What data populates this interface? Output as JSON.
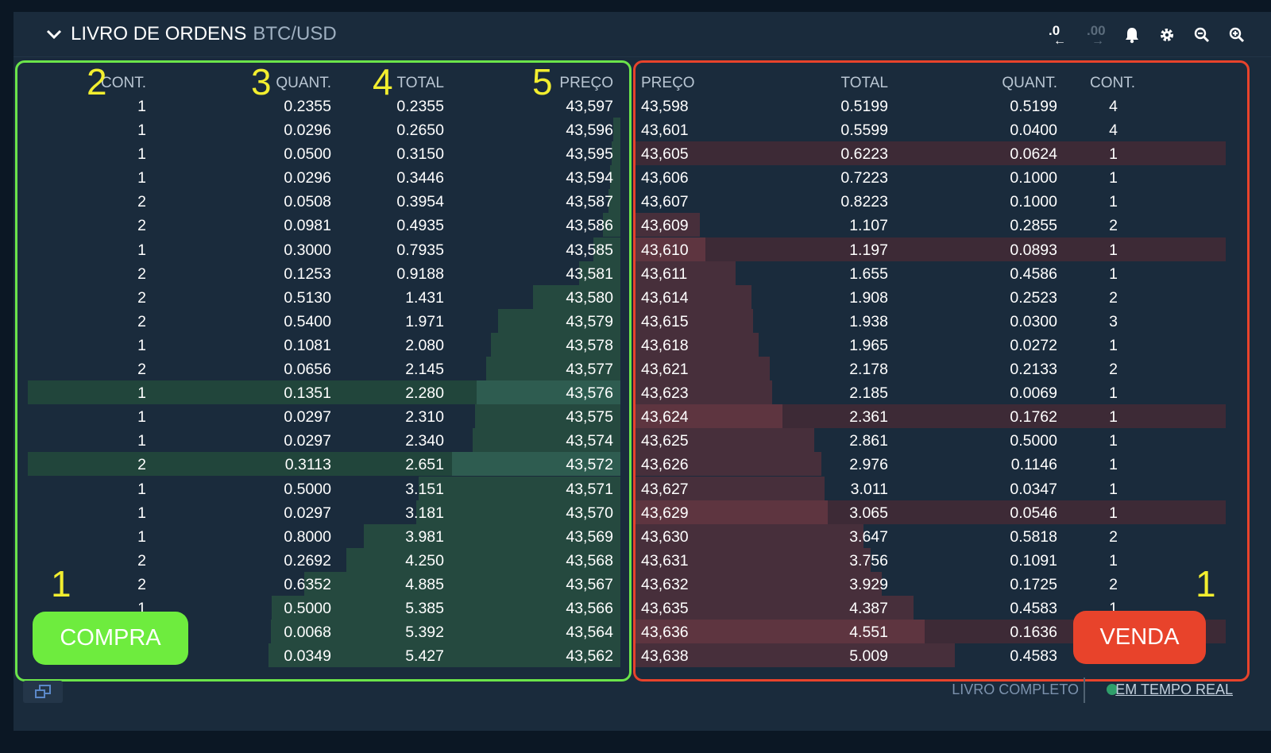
{
  "header": {
    "title": "LIVRO DE ORDENS",
    "pair": "BTC/USD",
    "tools": [
      {
        "icon": "decrease-precision-icon",
        "label": ".0"
      },
      {
        "icon": "increase-precision-icon",
        "label": ".00"
      },
      {
        "icon": "bell-icon"
      },
      {
        "icon": "gear-icon"
      },
      {
        "icon": "zoom-out-icon"
      },
      {
        "icon": "zoom-in-icon"
      }
    ]
  },
  "bids": {
    "headers": {
      "count": "CONT.",
      "amount": "QUANT.",
      "total": "TOTAL",
      "price": "PREÇO"
    },
    "rows": [
      {
        "count": "1",
        "amount": "0.2355",
        "total": "0.2355",
        "price": "43,597",
        "depth": 0.0,
        "highlight": false
      },
      {
        "count": "1",
        "amount": "0.0296",
        "total": "0.2650",
        "price": "43,596",
        "depth": 0.012,
        "highlight": false
      },
      {
        "count": "1",
        "amount": "0.0500",
        "total": "0.3150",
        "price": "43,595",
        "depth": 0.015,
        "highlight": false
      },
      {
        "count": "1",
        "amount": "0.0296",
        "total": "0.3446",
        "price": "43,594",
        "depth": 0.018,
        "highlight": false
      },
      {
        "count": "2",
        "amount": "0.0508",
        "total": "0.3954",
        "price": "43,587",
        "depth": 0.02,
        "highlight": false
      },
      {
        "count": "2",
        "amount": "0.0981",
        "total": "0.4935",
        "price": "43,586",
        "depth": 0.03,
        "highlight": false
      },
      {
        "count": "1",
        "amount": "0.3000",
        "total": "0.7935",
        "price": "43,585",
        "depth": 0.045,
        "highlight": false
      },
      {
        "count": "2",
        "amount": "0.1253",
        "total": "0.9188",
        "price": "43,581",
        "depth": 0.07,
        "highlight": false
      },
      {
        "count": "2",
        "amount": "0.5130",
        "total": "1.431",
        "price": "43,580",
        "depth": 0.147,
        "highlight": false
      },
      {
        "count": "2",
        "amount": "0.5400",
        "total": "1.971",
        "price": "43,579",
        "depth": 0.207,
        "highlight": false
      },
      {
        "count": "1",
        "amount": "0.1081",
        "total": "2.080",
        "price": "43,578",
        "depth": 0.219,
        "highlight": false
      },
      {
        "count": "2",
        "amount": "0.0656",
        "total": "2.145",
        "price": "43,577",
        "depth": 0.227,
        "highlight": false
      },
      {
        "count": "1",
        "amount": "0.1351",
        "total": "2.280",
        "price": "43,576",
        "depth": 0.242,
        "highlight": true
      },
      {
        "count": "1",
        "amount": "0.0297",
        "total": "2.310",
        "price": "43,575",
        "depth": 0.245,
        "highlight": false
      },
      {
        "count": "1",
        "amount": "0.0297",
        "total": "2.340",
        "price": "43,574",
        "depth": 0.249,
        "highlight": false
      },
      {
        "count": "2",
        "amount": "0.3113",
        "total": "2.651",
        "price": "43,572",
        "depth": 0.284,
        "highlight": true
      },
      {
        "count": "1",
        "amount": "0.5000",
        "total": "3.151",
        "price": "43,571",
        "depth": 0.34,
        "highlight": false
      },
      {
        "count": "1",
        "amount": "0.0297",
        "total": "3.181",
        "price": "43,570",
        "depth": 0.344,
        "highlight": false
      },
      {
        "count": "1",
        "amount": "0.8000",
        "total": "3.981",
        "price": "43,569",
        "depth": 0.433,
        "highlight": false
      },
      {
        "count": "2",
        "amount": "0.2692",
        "total": "4.250",
        "price": "43,568",
        "depth": 0.463,
        "highlight": false
      },
      {
        "count": "2",
        "amount": "0.6352",
        "total": "4.885",
        "price": "43,567",
        "depth": 0.534,
        "highlight": false
      },
      {
        "count": "1",
        "amount": "0.5000",
        "total": "5.385",
        "price": "43,566",
        "depth": 0.589,
        "highlight": false
      },
      {
        "count": "",
        "amount": "0.0068",
        "total": "5.392",
        "price": "43,564",
        "depth": 0.59,
        "highlight": false
      },
      {
        "count": "",
        "amount": "0.0349",
        "total": "5.427",
        "price": "43,562",
        "depth": 0.594,
        "highlight": false
      }
    ]
  },
  "asks": {
    "headers": {
      "price": "PREÇO",
      "total": "TOTAL",
      "amount": "QUANT.",
      "count": "CONT."
    },
    "rows": [
      {
        "price": "43,598",
        "total": "0.5199",
        "amount": "0.5199",
        "count": "4",
        "depth": 0.0,
        "highlight": false
      },
      {
        "price": "43,601",
        "total": "0.5599",
        "amount": "0.0400",
        "count": "4",
        "depth": 0.0,
        "highlight": false
      },
      {
        "price": "43,605",
        "total": "0.6223",
        "amount": "0.0624",
        "count": "1",
        "depth": 0.0,
        "highlight": true
      },
      {
        "price": "43,606",
        "total": "0.7223",
        "amount": "0.1000",
        "count": "1",
        "depth": 0.0,
        "highlight": false
      },
      {
        "price": "43,607",
        "total": "0.8223",
        "amount": "0.1000",
        "count": "1",
        "depth": 0.0,
        "highlight": false
      },
      {
        "price": "43,609",
        "total": "1.107",
        "amount": "0.2855",
        "count": "2",
        "depth": 0.11,
        "highlight": false
      },
      {
        "price": "43,610",
        "total": "1.197",
        "amount": "0.0893",
        "count": "1",
        "depth": 0.119,
        "highlight": true
      },
      {
        "price": "43,611",
        "total": "1.655",
        "amount": "0.4586",
        "count": "1",
        "depth": 0.171,
        "highlight": false
      },
      {
        "price": "43,614",
        "total": "1.908",
        "amount": "0.2523",
        "count": "2",
        "depth": 0.198,
        "highlight": false
      },
      {
        "price": "43,615",
        "total": "1.938",
        "amount": "0.0300",
        "count": "3",
        "depth": 0.2,
        "highlight": false
      },
      {
        "price": "43,618",
        "total": "1.965",
        "amount": "0.0272",
        "count": "1",
        "depth": 0.21,
        "highlight": false
      },
      {
        "price": "43,621",
        "total": "2.178",
        "amount": "0.2133",
        "count": "2",
        "depth": 0.229,
        "highlight": false
      },
      {
        "price": "43,623",
        "total": "2.185",
        "amount": "0.0069",
        "count": "1",
        "depth": 0.232,
        "highlight": false
      },
      {
        "price": "43,624",
        "total": "2.361",
        "amount": "0.1762",
        "count": "1",
        "depth": 0.25,
        "highlight": true
      },
      {
        "price": "43,625",
        "total": "2.861",
        "amount": "0.5000",
        "count": "1",
        "depth": 0.304,
        "highlight": false
      },
      {
        "price": "43,626",
        "total": "2.976",
        "amount": "0.1146",
        "count": "1",
        "depth": 0.316,
        "highlight": false
      },
      {
        "price": "43,627",
        "total": "3.011",
        "amount": "0.0347",
        "count": "1",
        "depth": 0.321,
        "highlight": false
      },
      {
        "price": "43,629",
        "total": "3.065",
        "amount": "0.0546",
        "count": "1",
        "depth": 0.327,
        "highlight": true
      },
      {
        "price": "43,630",
        "total": "3.647",
        "amount": "0.5818",
        "count": "2",
        "depth": 0.387,
        "highlight": false
      },
      {
        "price": "43,631",
        "total": "3.756",
        "amount": "0.1091",
        "count": "1",
        "depth": 0.399,
        "highlight": false
      },
      {
        "price": "43,632",
        "total": "3.929",
        "amount": "0.1725",
        "count": "2",
        "depth": 0.418,
        "highlight": false
      },
      {
        "price": "43,635",
        "total": "4.387",
        "amount": "0.4583",
        "count": "1",
        "depth": 0.472,
        "highlight": false
      },
      {
        "price": "43,636",
        "total": "4.551",
        "amount": "0.1636",
        "count": "",
        "depth": 0.49,
        "highlight": true
      },
      {
        "price": "43,638",
        "total": "5.009",
        "amount": "0.4583",
        "count": "",
        "depth": 0.541,
        "highlight": false
      }
    ]
  },
  "annotations": {
    "bid_side": "1",
    "col_count": "2",
    "col_amount": "3",
    "col_total": "4",
    "col_price": "5",
    "ask_side": "1"
  },
  "buttons": {
    "buy": "COMPRA",
    "sell": "VENDA"
  },
  "footer": {
    "full_book": "LIVRO COMPLETO",
    "realtime": "EM TEMPO REAL"
  },
  "colors": {
    "panel_bg": "#1a2b3c",
    "bid_depth": "#25493f",
    "ask_depth": "#472f3b",
    "buy_button": "#6eec3e",
    "sell_button": "#e8432b",
    "annotation": "#f2ee2f"
  }
}
